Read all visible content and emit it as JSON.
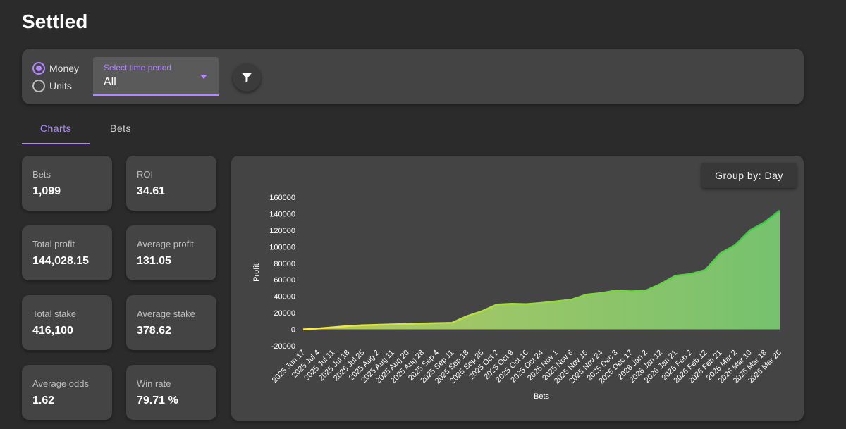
{
  "page": {
    "title": "Settled"
  },
  "toolbar": {
    "radio_money": "Money",
    "radio_units": "Units",
    "select_label": "Select time period",
    "select_value": "All",
    "filter_icon": "filter-icon"
  },
  "tabs": {
    "charts": "Charts",
    "bets": "Bets"
  },
  "stats": {
    "bets": {
      "label": "Bets",
      "value": "1,099"
    },
    "roi": {
      "label": "ROI",
      "value": "34.61"
    },
    "total_profit": {
      "label": "Total profit",
      "value": "144,028.15"
    },
    "average_profit": {
      "label": "Average profit",
      "value": "131.05"
    },
    "total_stake": {
      "label": "Total stake",
      "value": "416,100"
    },
    "average_stake": {
      "label": "Average stake",
      "value": "378.62"
    },
    "average_odds": {
      "label": "Average odds",
      "value": "1.62"
    },
    "win_rate": {
      "label": "Win rate",
      "value": "79.71 %"
    }
  },
  "chart": {
    "group_by_label": "Group by: Day"
  },
  "colors": {
    "accent": "#b388ff",
    "line_start": "#ffeb3b",
    "line_end": "#2ecc40",
    "fill_start": "#b5c963",
    "fill_end": "#76c26e"
  },
  "chart_data": {
    "type": "area",
    "title": "",
    "xlabel": "Bets",
    "ylabel": "Profit",
    "ylim": [
      -20000,
      160000
    ],
    "yticks": [
      -20000,
      0,
      20000,
      40000,
      60000,
      80000,
      100000,
      120000,
      140000,
      160000
    ],
    "categories": [
      "2025 Jun 17",
      "2025 Jul 4",
      "2025 Jul 11",
      "2025 Jul 18",
      "2025 Jul 25",
      "2025 Aug 2",
      "2025 Aug 11",
      "2025 Aug 20",
      "2025 Aug 28",
      "2025 Sep 4",
      "2025 Sep 11",
      "2025 Sep 18",
      "2025 Sep 25",
      "2025 Oct 2",
      "2025 Oct 9",
      "2025 Oct 16",
      "2025 Oct 24",
      "2025 Nov 1",
      "2025 Nov 8",
      "2025 Nov 15",
      "2025 Nov 24",
      "2025 Dec 3",
      "2025 Dec 17",
      "2026 Jan 2",
      "2026 Jan 12",
      "2026 Jan 21",
      "2026 Feb 2",
      "2026 Feb 12",
      "2026 Feb 21",
      "2026 Mar 2",
      "2026 Mar 10",
      "2026 Mar 18",
      "2026 Mar 25"
    ],
    "series": [
      {
        "name": "Profit",
        "values": [
          0,
          1000,
          2500,
          4000,
          5000,
          5500,
          6000,
          6500,
          7000,
          7500,
          8000,
          16000,
          22000,
          30000,
          31000,
          30500,
          32000,
          34000,
          36000,
          42000,
          44000,
          47000,
          46000,
          47000,
          55000,
          65000,
          67000,
          72000,
          92000,
          102000,
          120000,
          130000,
          144028
        ]
      }
    ]
  }
}
